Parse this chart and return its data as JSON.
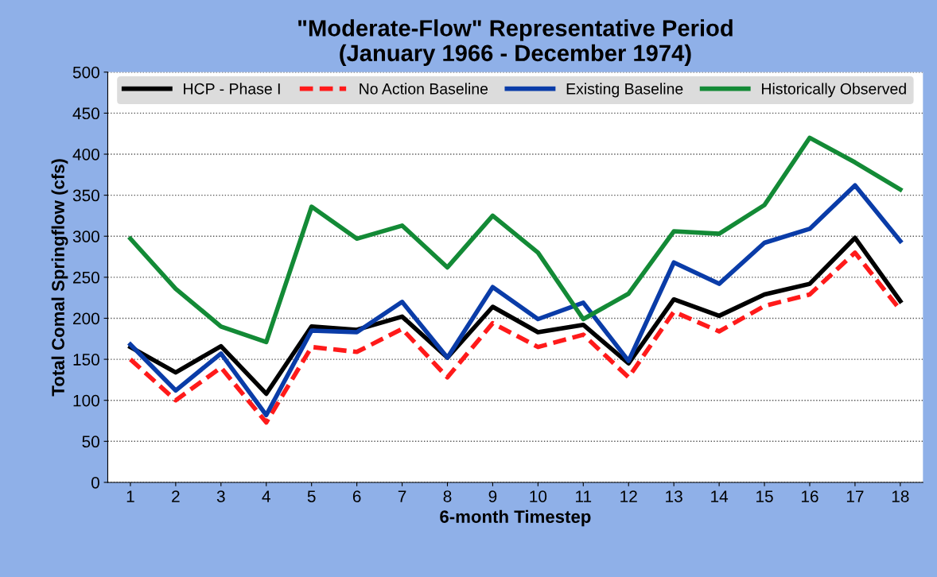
{
  "chart_data": {
    "type": "line",
    "title": "\"Moderate-Flow\" Representative Period\n(January 1966 - December 1974)",
    "xlabel": "6-month Timestep",
    "ylabel": "Total Comal Springflow (cfs)",
    "categories": [
      "1",
      "2",
      "3",
      "4",
      "5",
      "6",
      "7",
      "8",
      "9",
      "10",
      "11",
      "12",
      "13",
      "14",
      "15",
      "16",
      "17",
      "18"
    ],
    "series": [
      {
        "name": "HCP - Phase I",
        "color": "#000000",
        "line_style": "solid",
        "values": [
          165,
          134,
          166,
          108,
          190,
          186,
          202,
          152,
          214,
          183,
          192,
          145,
          223,
          203,
          229,
          242,
          298,
          221
        ]
      },
      {
        "name": "No Action Baseline",
        "color": "#ff1a1a",
        "line_style": "dashed",
        "values": [
          150,
          100,
          140,
          73,
          165,
          159,
          187,
          128,
          194,
          165,
          180,
          128,
          208,
          184,
          215,
          229,
          280,
          210
        ]
      },
      {
        "name": "Existing Baseline",
        "color": "#0a3ca8",
        "line_style": "solid",
        "values": [
          168,
          112,
          157,
          82,
          185,
          183,
          220,
          152,
          238,
          199,
          219,
          148,
          268,
          242,
          292,
          309,
          362,
          294
        ]
      },
      {
        "name": "Historically Observed",
        "color": "#138a36",
        "line_style": "solid",
        "values": [
          297,
          236,
          190,
          171,
          336,
          297,
          313,
          262,
          325,
          280,
          199,
          230,
          306,
          303,
          338,
          420,
          390,
          357
        ]
      }
    ],
    "ylim": [
      0,
      500
    ],
    "yticks": [
      0,
      50,
      100,
      150,
      200,
      250,
      300,
      350,
      400,
      450,
      500
    ],
    "grid": "y",
    "legend": "top",
    "marker": "none"
  }
}
